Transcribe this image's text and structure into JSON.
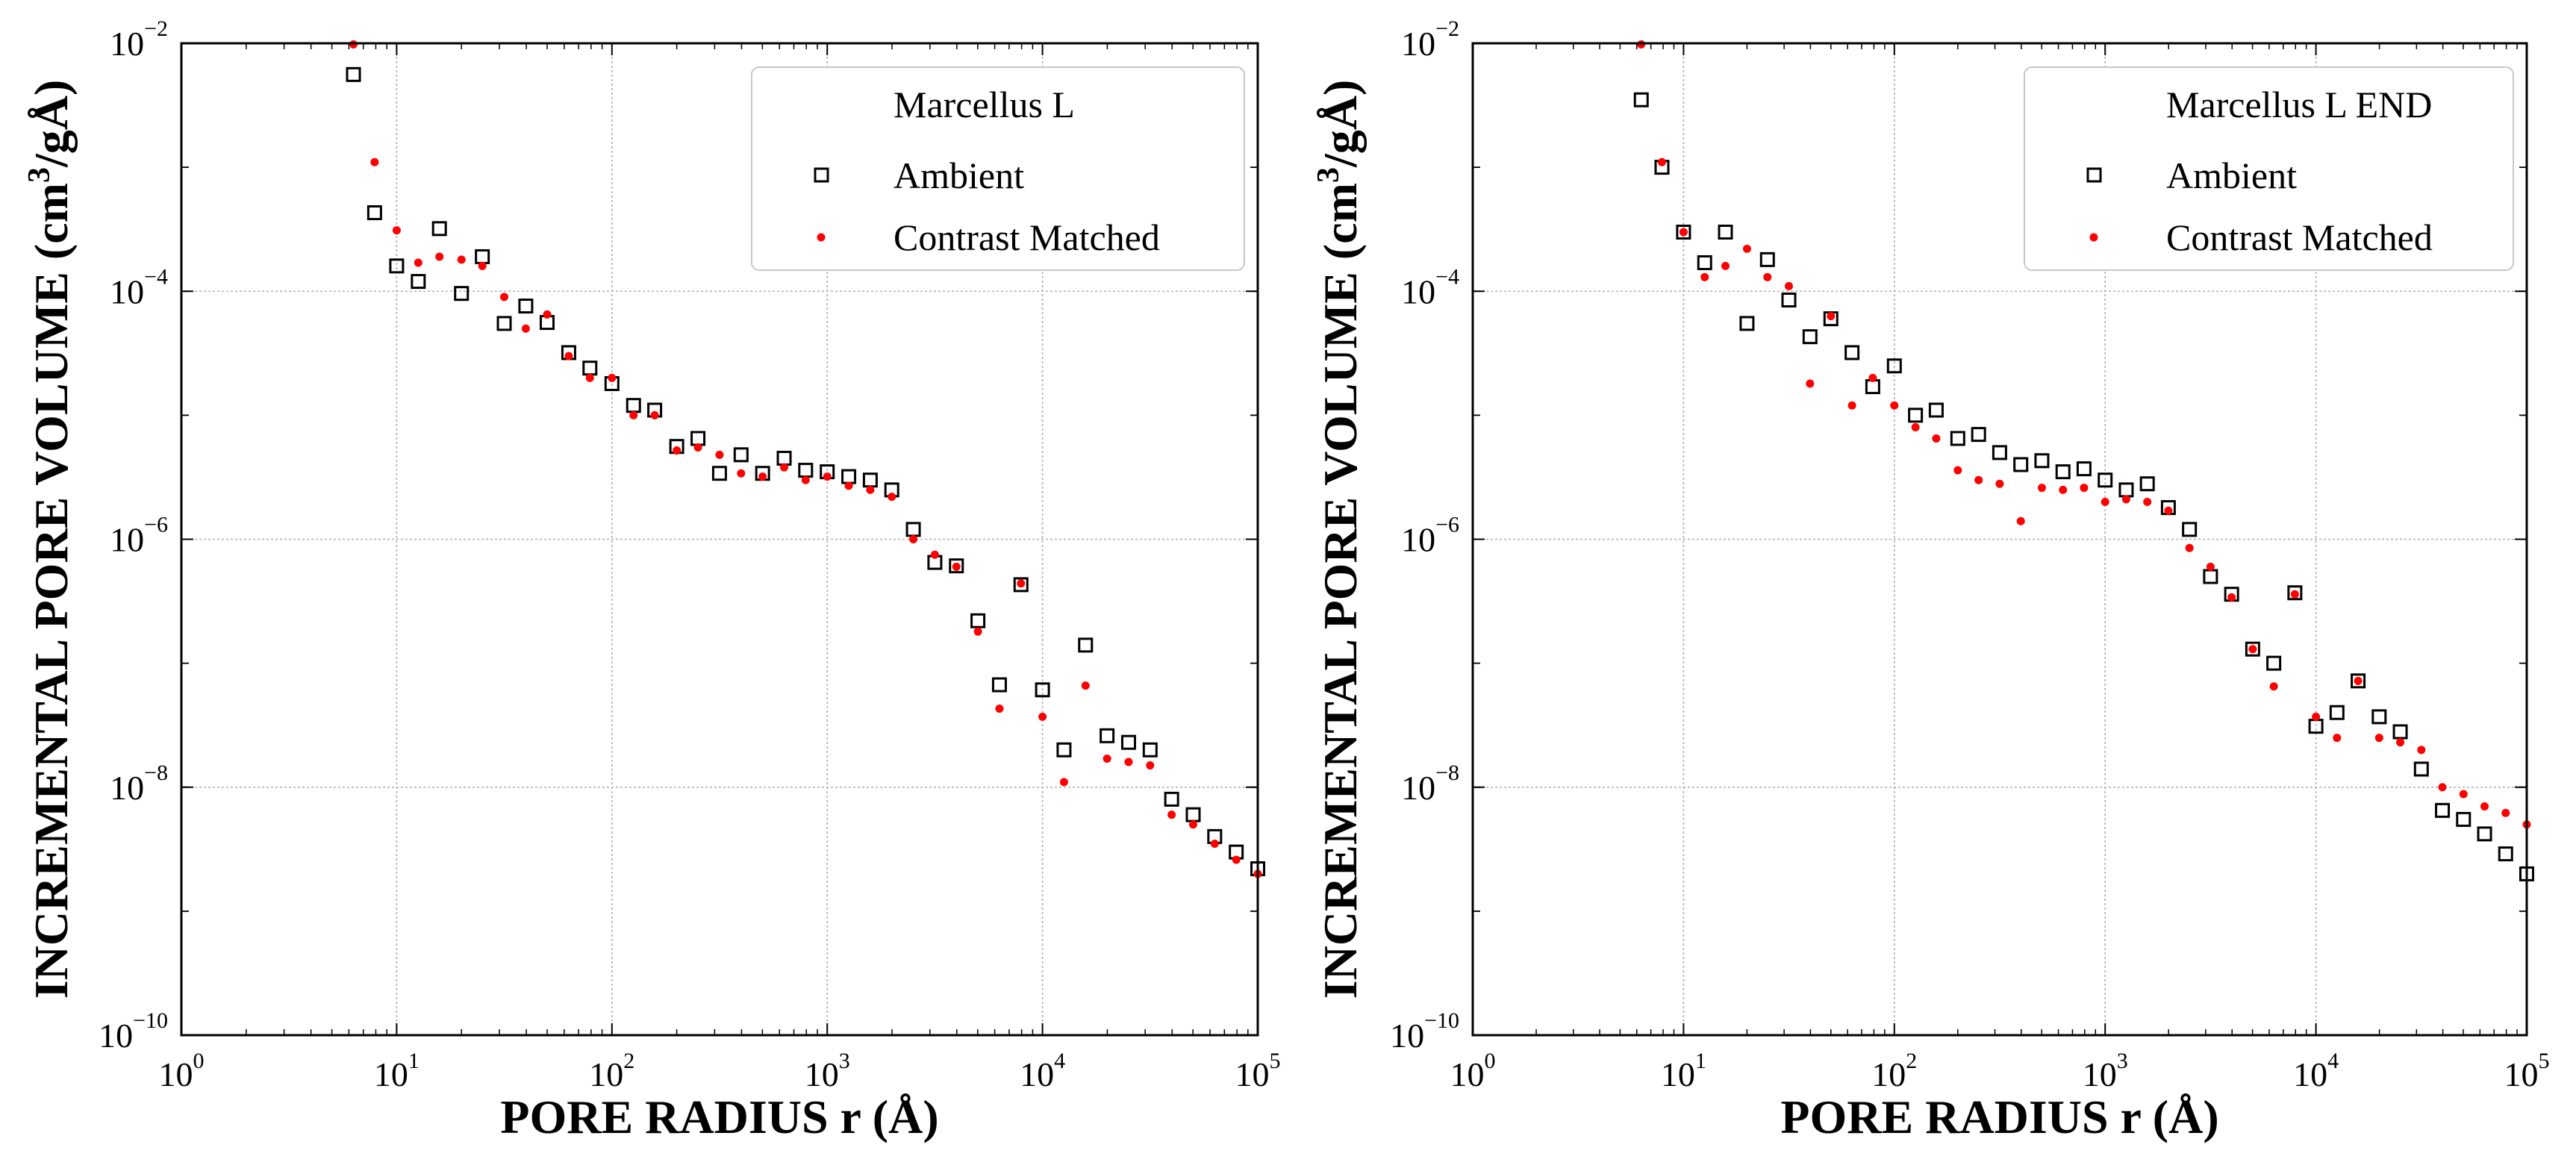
{
  "chart_data": [
    {
      "type": "scatter",
      "title": "",
      "xlabel": "PORE RADIUS r (Å)",
      "ylabel": "INCREMENTAL PORE VOLUME (cm³/gÅ)",
      "ylabel_parts": {
        "pre": "INCREMENTAL PORE VOLUME (cm",
        "sup": "3",
        "post": "/gÅ)"
      },
      "xlabel_parts": {
        "pre": "PORE RADIUS r (Å)"
      },
      "xscale": "log",
      "yscale": "log",
      "xlim": [
        1,
        100000
      ],
      "ylim": [
        1e-10,
        0.01
      ],
      "grid": true,
      "x_ticks": [
        {
          "base": "10",
          "exp": "0"
        },
        {
          "base": "10",
          "exp": "1"
        },
        {
          "base": "10",
          "exp": "2"
        },
        {
          "base": "10",
          "exp": "3"
        },
        {
          "base": "10",
          "exp": "4"
        },
        {
          "base": "10",
          "exp": "5"
        }
      ],
      "y_ticks": [
        {
          "base": "10",
          "exp": "−10"
        },
        {
          "base": "10",
          "exp": "−8"
        },
        {
          "base": "10",
          "exp": "−6"
        },
        {
          "base": "10",
          "exp": "−4"
        },
        {
          "base": "10",
          "exp": "−2"
        }
      ],
      "legend": {
        "position": "top-right",
        "title": "Marcellus L"
      },
      "series": [
        {
          "name": "Ambient",
          "marker": "open-square",
          "color": "#000000",
          "points": [
            [
              6.3,
              0.0056
            ],
            [
              7.9,
              0.00043
            ],
            [
              10,
              0.00016
            ],
            [
              12.6,
              0.00012
            ],
            [
              15.8,
              0.00032
            ],
            [
              20,
              9.6e-05
            ],
            [
              25,
              0.00019
            ],
            [
              31.6,
              5.5e-05
            ],
            [
              39.8,
              7.6e-05
            ],
            [
              50,
              5.6e-05
            ],
            [
              63,
              3.2e-05
            ],
            [
              79,
              2.4e-05
            ],
            [
              100,
              1.8e-05
            ],
            [
              126,
              1.2e-05
            ],
            [
              158,
              1.1e-05
            ],
            [
              200,
              5.6e-06
            ],
            [
              251,
              6.5e-06
            ],
            [
              316,
              3.4e-06
            ],
            [
              398,
              4.8e-06
            ],
            [
              501,
              3.4e-06
            ],
            [
              631,
              4.5e-06
            ],
            [
              794,
              3.6e-06
            ],
            [
              1000,
              3.5e-06
            ],
            [
              1259,
              3.2e-06
            ],
            [
              1585,
              3e-06
            ],
            [
              1995,
              2.5e-06
            ],
            [
              2512,
              1.2e-06
            ],
            [
              3162,
              6.5e-07
            ],
            [
              3981,
              6.1e-07
            ],
            [
              5012,
              2.2e-07
            ],
            [
              6310,
              6.7e-08
            ],
            [
              7943,
              4.3e-07
            ],
            [
              10000,
              6.1e-08
            ],
            [
              12589,
              2e-08
            ],
            [
              15849,
              1.4e-07
            ],
            [
              19953,
              2.6e-08
            ],
            [
              25119,
              2.3e-08
            ],
            [
              31623,
              2e-08
            ],
            [
              39811,
              8e-09
            ],
            [
              50119,
              6e-09
            ],
            [
              63096,
              4e-09
            ],
            [
              79433,
              3e-09
            ],
            [
              100000,
              2.2e-09
            ]
          ]
        },
        {
          "name": "Contrast Matched",
          "marker": "dot",
          "color": "#ff0000",
          "points": [
            [
              6.3,
              0.0098
            ],
            [
              7.9,
              0.0011
            ],
            [
              10,
              0.00031
            ],
            [
              12.6,
              0.00017
            ],
            [
              15.8,
              0.00019
            ],
            [
              20,
              0.00018
            ],
            [
              25,
              0.00016
            ],
            [
              31.6,
              9e-05
            ],
            [
              39.8,
              5e-05
            ],
            [
              50,
              6.5e-05
            ],
            [
              63,
              3e-05
            ],
            [
              79,
              2e-05
            ],
            [
              100,
              2e-05
            ],
            [
              126,
              1e-05
            ],
            [
              158,
              1e-05
            ],
            [
              200,
              5.2e-06
            ],
            [
              251,
              5.5e-06
            ],
            [
              316,
              4.8e-06
            ],
            [
              398,
              3.4e-06
            ],
            [
              501,
              3.2e-06
            ],
            [
              631,
              3.8e-06
            ],
            [
              794,
              3e-06
            ],
            [
              1000,
              3.2e-06
            ],
            [
              1259,
              2.7e-06
            ],
            [
              1585,
              2.5e-06
            ],
            [
              1995,
              2.2e-06
            ],
            [
              2512,
              1e-06
            ],
            [
              3162,
              7.5e-07
            ],
            [
              3981,
              6e-07
            ],
            [
              5012,
              1.8e-07
            ],
            [
              6310,
              4.3e-08
            ],
            [
              7943,
              4.4e-07
            ],
            [
              10000,
              3.7e-08
            ],
            [
              12589,
              1.1e-08
            ],
            [
              15849,
              6.6e-08
            ],
            [
              19953,
              1.7e-08
            ],
            [
              25119,
              1.6e-08
            ],
            [
              31623,
              1.5e-08
            ],
            [
              39811,
              6e-09
            ],
            [
              50119,
              5e-09
            ],
            [
              63096,
              3.5e-09
            ],
            [
              79433,
              2.6e-09
            ],
            [
              100000,
              2e-09
            ]
          ]
        }
      ]
    },
    {
      "type": "scatter",
      "title": "",
      "xlabel": "PORE RADIUS r (Å)",
      "ylabel": "INCREMENTAL PORE VOLUME (cm³/gÅ)",
      "ylabel_parts": {
        "pre": "INCREMENTAL PORE VOLUME (cm",
        "sup": "3",
        "post": "/gÅ)"
      },
      "xlabel_parts": {
        "pre": "PORE RADIUS r (Å)"
      },
      "xscale": "log",
      "yscale": "log",
      "xlim": [
        1,
        100000
      ],
      "ylim": [
        1e-10,
        0.01
      ],
      "grid": true,
      "x_ticks": [
        {
          "base": "10",
          "exp": "0"
        },
        {
          "base": "10",
          "exp": "1"
        },
        {
          "base": "10",
          "exp": "2"
        },
        {
          "base": "10",
          "exp": "3"
        },
        {
          "base": "10",
          "exp": "4"
        },
        {
          "base": "10",
          "exp": "5"
        }
      ],
      "y_ticks": [
        {
          "base": "10",
          "exp": "−10"
        },
        {
          "base": "10",
          "exp": "−8"
        },
        {
          "base": "10",
          "exp": "−6"
        },
        {
          "base": "10",
          "exp": "−4"
        },
        {
          "base": "10",
          "exp": "−2"
        }
      ],
      "legend": {
        "position": "top-right",
        "title": "Marcellus L END"
      },
      "series": [
        {
          "name": "Ambient",
          "marker": "open-square",
          "color": "#000000",
          "points": [
            [
              6.3,
              0.0035
            ],
            [
              7.9,
              0.001
            ],
            [
              10,
              0.0003
            ],
            [
              12.6,
              0.00017
            ],
            [
              15.8,
              0.0003
            ],
            [
              20,
              5.5e-05
            ],
            [
              25,
              0.00018
            ],
            [
              31.6,
              8.5e-05
            ],
            [
              39.8,
              4.3e-05
            ],
            [
              50,
              6e-05
            ],
            [
              63,
              3.2e-05
            ],
            [
              79,
              1.7e-05
            ],
            [
              100,
              2.5e-05
            ],
            [
              126,
              1e-05
            ],
            [
              158,
              1.1e-05
            ],
            [
              200,
              6.5e-06
            ],
            [
              251,
              7e-06
            ],
            [
              316,
              5e-06
            ],
            [
              398,
              4e-06
            ],
            [
              501,
              4.3e-06
            ],
            [
              631,
              3.5e-06
            ],
            [
              794,
              3.7e-06
            ],
            [
              1000,
              3e-06
            ],
            [
              1259,
              2.5e-06
            ],
            [
              1585,
              2.8e-06
            ],
            [
              1995,
              1.8e-06
            ],
            [
              2512,
              1.2e-06
            ],
            [
              3162,
              5e-07
            ],
            [
              3981,
              3.6e-07
            ],
            [
              5012,
              1.3e-07
            ],
            [
              6310,
              1e-07
            ],
            [
              7943,
              3.7e-07
            ],
            [
              10000,
              3.1e-08
            ],
            [
              12589,
              4e-08
            ],
            [
              15849,
              7.2e-08
            ],
            [
              19953,
              3.7e-08
            ],
            [
              25119,
              2.8e-08
            ],
            [
              31623,
              1.4e-08
            ],
            [
              39811,
              6.5e-09
            ],
            [
              50119,
              5.5e-09
            ],
            [
              63096,
              4.2e-09
            ],
            [
              79433,
              2.9e-09
            ],
            [
              100000,
              2e-09
            ]
          ]
        },
        {
          "name": "Contrast Matched",
          "marker": "dot",
          "color": "#ff0000",
          "points": [
            [
              6.3,
              0.0098
            ],
            [
              7.9,
              0.0011
            ],
            [
              10,
              0.0003
            ],
            [
              12.6,
              0.00013
            ],
            [
              15.8,
              0.00016
            ],
            [
              20,
              0.00022
            ],
            [
              25,
              0.00013
            ],
            [
              31.6,
              0.00011
            ],
            [
              39.8,
              1.8e-05
            ],
            [
              50,
              6.3e-05
            ],
            [
              63,
              1.2e-05
            ],
            [
              79,
              2e-05
            ],
            [
              100,
              1.2e-05
            ],
            [
              126,
              8e-06
            ],
            [
              158,
              6.5e-06
            ],
            [
              200,
              3.6e-06
            ],
            [
              251,
              3e-06
            ],
            [
              316,
              2.8e-06
            ],
            [
              398,
              1.4e-06
            ],
            [
              501,
              2.6e-06
            ],
            [
              631,
              2.5e-06
            ],
            [
              794,
              2.6e-06
            ],
            [
              1000,
              2e-06
            ],
            [
              1259,
              2.1e-06
            ],
            [
              1585,
              2e-06
            ],
            [
              1995,
              1.7e-06
            ],
            [
              2512,
              8.5e-07
            ],
            [
              3162,
              6e-07
            ],
            [
              3981,
              3.4e-07
            ],
            [
              5012,
              1.3e-07
            ],
            [
              6310,
              6.5e-08
            ],
            [
              7943,
              3.6e-07
            ],
            [
              10000,
              3.7e-08
            ],
            [
              12589,
              2.5e-08
            ],
            [
              15849,
              7.2e-08
            ],
            [
              19953,
              2.5e-08
            ],
            [
              25119,
              2.3e-08
            ],
            [
              31623,
              2e-08
            ],
            [
              39811,
              1e-08
            ],
            [
              50119,
              8.8e-09
            ],
            [
              63096,
              7e-09
            ],
            [
              79433,
              6.2e-09
            ],
            [
              100000,
              5e-09
            ]
          ]
        }
      ]
    }
  ]
}
